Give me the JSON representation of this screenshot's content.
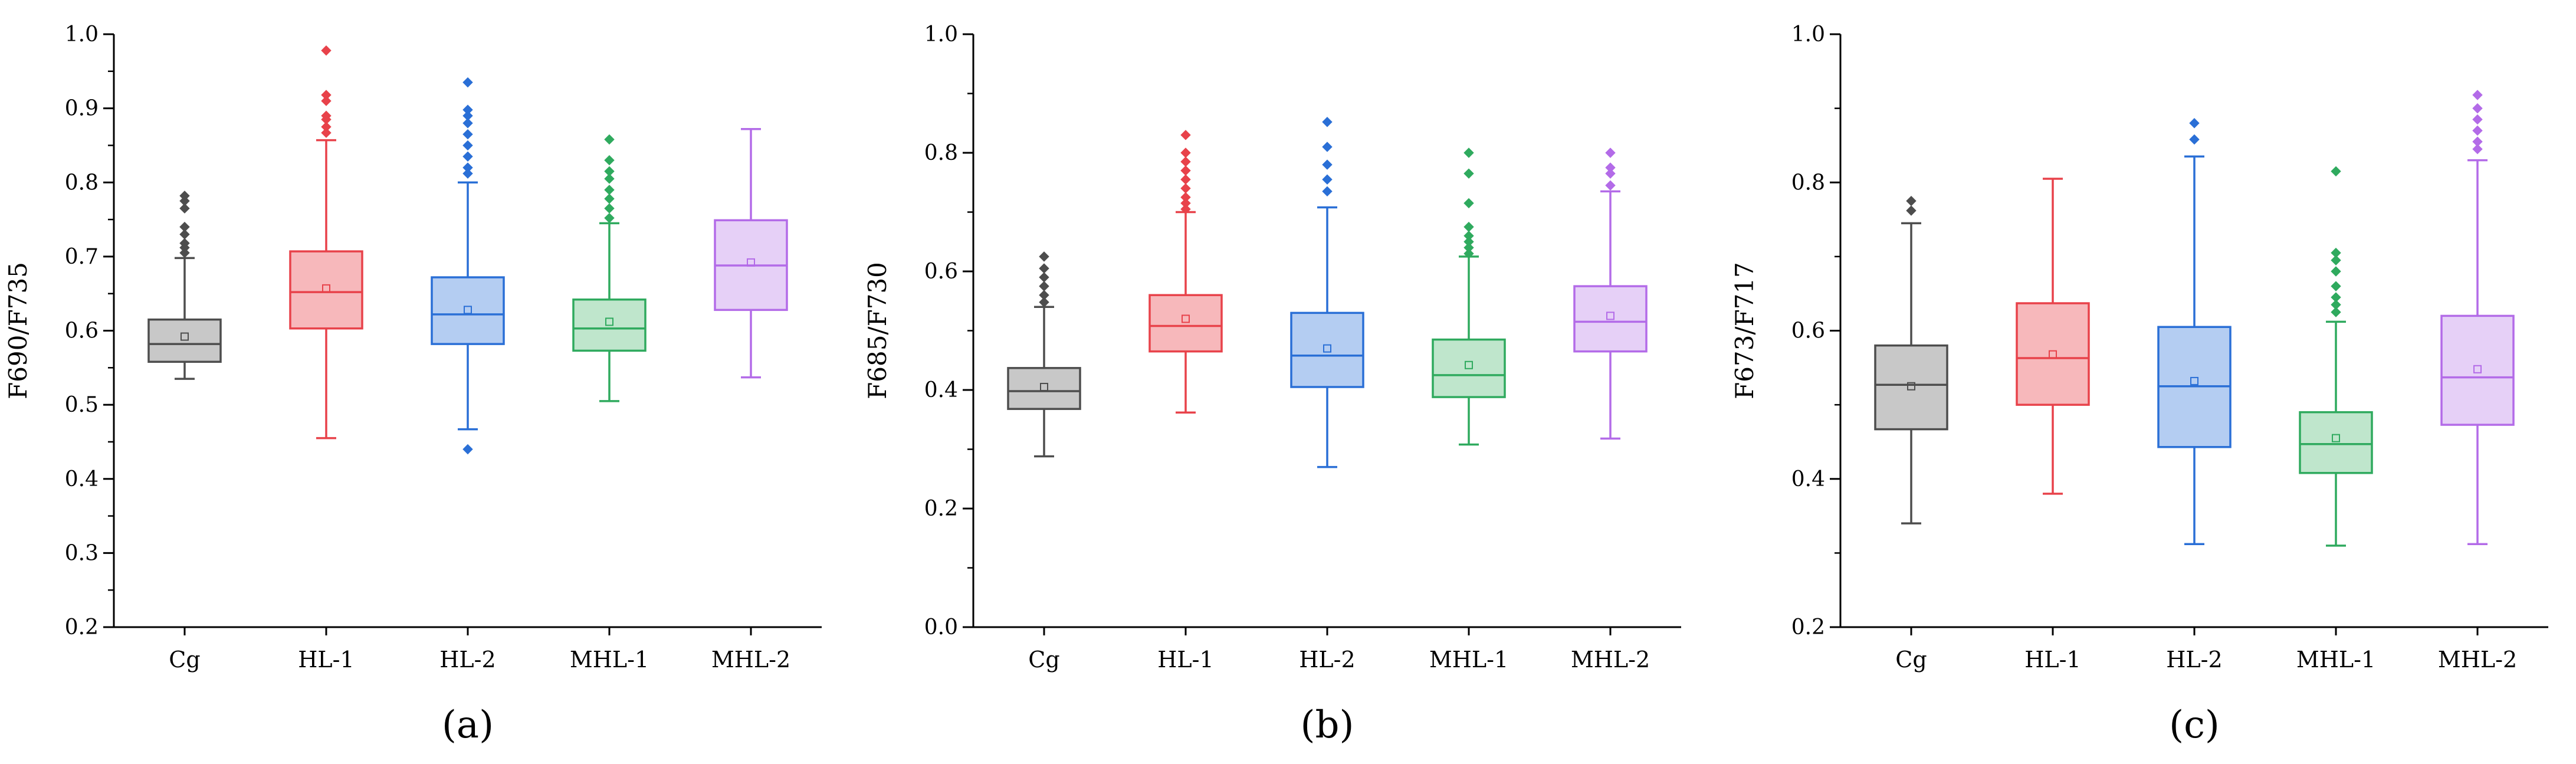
{
  "chart_data": [
    {
      "type": "box",
      "panel_label": "(a)",
      "ylabel": "F690/F735",
      "ylim": [
        0.2,
        1.0
      ],
      "yticks": [
        0.2,
        0.3,
        0.4,
        0.5,
        0.6,
        0.7,
        0.8,
        0.9,
        1.0
      ],
      "ytick_labels": [
        "0.2",
        "0.3",
        "0.4",
        "0.5",
        "0.6",
        "0.7",
        "0.8",
        "0.9",
        "1.0"
      ],
      "categories": [
        "Cg",
        "HL-1",
        "HL-2",
        "MHL-1",
        "MHL-2"
      ],
      "boxes": [
        {
          "name": "Cg",
          "color": "#4d4d4d",
          "fill": "#c8c8c8",
          "whisker_low": 0.535,
          "q1": 0.558,
          "median": 0.582,
          "q3": 0.615,
          "whisker_high": 0.698,
          "mean": 0.592,
          "outliers": [
            0.705,
            0.712,
            0.718,
            0.73,
            0.74,
            0.765,
            0.775,
            0.782
          ]
        },
        {
          "name": "HL-1",
          "color": "#e8424a",
          "fill": "#f7b8bb",
          "whisker_low": 0.455,
          "q1": 0.603,
          "median": 0.652,
          "q3": 0.707,
          "whisker_high": 0.857,
          "mean": 0.657,
          "outliers": [
            0.867,
            0.875,
            0.885,
            0.89,
            0.91,
            0.918,
            0.978
          ]
        },
        {
          "name": "HL-2",
          "color": "#2a6fd6",
          "fill": "#b4cdf2",
          "whisker_low": 0.467,
          "q1": 0.582,
          "median": 0.622,
          "q3": 0.672,
          "whisker_high": 0.8,
          "mean": 0.628,
          "outliers": [
            0.44,
            0.812,
            0.82,
            0.835,
            0.85,
            0.865,
            0.88,
            0.89,
            0.898,
            0.935
          ]
        },
        {
          "name": "MHL-1",
          "color": "#2faa5e",
          "fill": "#bfe6cc",
          "whisker_low": 0.505,
          "q1": 0.573,
          "median": 0.603,
          "q3": 0.642,
          "whisker_high": 0.745,
          "mean": 0.612,
          "outliers": [
            0.752,
            0.765,
            0.778,
            0.79,
            0.805,
            0.815,
            0.83,
            0.858
          ]
        },
        {
          "name": "MHL-2",
          "color": "#b36be8",
          "fill": "#e6d0f7",
          "whisker_low": 0.537,
          "q1": 0.628,
          "median": 0.688,
          "q3": 0.749,
          "whisker_high": 0.872,
          "mean": 0.692,
          "outliers": []
        }
      ]
    },
    {
      "type": "box",
      "panel_label": "(b)",
      "ylabel": "F685/F730",
      "ylim": [
        0.0,
        1.0
      ],
      "yticks": [
        0.0,
        0.2,
        0.4,
        0.6,
        0.8,
        1.0
      ],
      "ytick_labels": [
        "0.0",
        "0.2",
        "0.4",
        "0.6",
        "0.8",
        "1.0"
      ],
      "categories": [
        "Cg",
        "HL-1",
        "HL-2",
        "MHL-1",
        "MHL-2"
      ],
      "boxes": [
        {
          "name": "Cg",
          "color": "#4d4d4d",
          "fill": "#c8c8c8",
          "whisker_low": 0.288,
          "q1": 0.368,
          "median": 0.398,
          "q3": 0.437,
          "whisker_high": 0.54,
          "mean": 0.405,
          "outliers": [
            0.548,
            0.56,
            0.575,
            0.59,
            0.605,
            0.625
          ]
        },
        {
          "name": "HL-1",
          "color": "#e8424a",
          "fill": "#f7b8bb",
          "whisker_low": 0.362,
          "q1": 0.465,
          "median": 0.508,
          "q3": 0.56,
          "whisker_high": 0.7,
          "mean": 0.52,
          "outliers": [
            0.705,
            0.715,
            0.725,
            0.74,
            0.755,
            0.77,
            0.785,
            0.8,
            0.83
          ]
        },
        {
          "name": "HL-2",
          "color": "#2a6fd6",
          "fill": "#b4cdf2",
          "whisker_low": 0.27,
          "q1": 0.405,
          "median": 0.458,
          "q3": 0.53,
          "whisker_high": 0.708,
          "mean": 0.47,
          "outliers": [
            0.735,
            0.755,
            0.78,
            0.81,
            0.852
          ]
        },
        {
          "name": "MHL-1",
          "color": "#2faa5e",
          "fill": "#bfe6cc",
          "whisker_low": 0.308,
          "q1": 0.388,
          "median": 0.425,
          "q3": 0.485,
          "whisker_high": 0.625,
          "mean": 0.442,
          "outliers": [
            0.63,
            0.64,
            0.65,
            0.66,
            0.675,
            0.715,
            0.765,
            0.8
          ]
        },
        {
          "name": "MHL-2",
          "color": "#b36be8",
          "fill": "#e6d0f7",
          "whisker_low": 0.318,
          "q1": 0.465,
          "median": 0.515,
          "q3": 0.575,
          "whisker_high": 0.735,
          "mean": 0.525,
          "outliers": [
            0.745,
            0.765,
            0.775,
            0.8
          ]
        }
      ]
    },
    {
      "type": "box",
      "panel_label": "(c)",
      "ylabel": "F673/F717",
      "ylim": [
        0.2,
        1.0
      ],
      "yticks": [
        0.2,
        0.4,
        0.6,
        0.8,
        1.0
      ],
      "ytick_labels": [
        "0.2",
        "0.4",
        "0.6",
        "0.8",
        "1.0"
      ],
      "categories": [
        "Cg",
        "HL-1",
        "HL-2",
        "MHL-1",
        "MHL-2"
      ],
      "boxes": [
        {
          "name": "Cg",
          "color": "#4d4d4d",
          "fill": "#c8c8c8",
          "whisker_low": 0.34,
          "q1": 0.467,
          "median": 0.527,
          "q3": 0.58,
          "whisker_high": 0.745,
          "mean": 0.525,
          "outliers": [
            0.762,
            0.775
          ]
        },
        {
          "name": "HL-1",
          "color": "#e8424a",
          "fill": "#f7b8bb",
          "whisker_low": 0.38,
          "q1": 0.5,
          "median": 0.563,
          "q3": 0.637,
          "whisker_high": 0.805,
          "mean": 0.568,
          "outliers": []
        },
        {
          "name": "HL-2",
          "color": "#2a6fd6",
          "fill": "#b4cdf2",
          "whisker_low": 0.312,
          "q1": 0.443,
          "median": 0.525,
          "q3": 0.605,
          "whisker_high": 0.835,
          "mean": 0.532,
          "outliers": [
            0.858,
            0.88
          ]
        },
        {
          "name": "MHL-1",
          "color": "#2faa5e",
          "fill": "#bfe6cc",
          "whisker_low": 0.31,
          "q1": 0.408,
          "median": 0.447,
          "q3": 0.49,
          "whisker_high": 0.612,
          "mean": 0.455,
          "outliers": [
            0.625,
            0.635,
            0.645,
            0.66,
            0.68,
            0.695,
            0.705,
            0.815
          ]
        },
        {
          "name": "MHL-2",
          "color": "#b36be8",
          "fill": "#e6d0f7",
          "whisker_low": 0.312,
          "q1": 0.473,
          "median": 0.537,
          "q3": 0.62,
          "whisker_high": 0.83,
          "mean": 0.548,
          "outliers": [
            0.845,
            0.855,
            0.87,
            0.885,
            0.9,
            0.918
          ]
        }
      ]
    }
  ]
}
